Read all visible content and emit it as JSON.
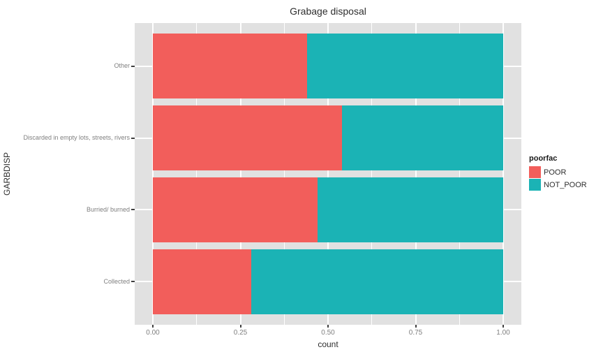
{
  "chart_data": {
    "type": "bar",
    "orientation": "horizontal",
    "stacked": true,
    "normalized": true,
    "title": "Grabage disposal",
    "xlabel": "count",
    "ylabel": "GARBDISP",
    "xlim": [
      0,
      1
    ],
    "x_ticks": [
      {
        "value": 0.0,
        "label": "0.00"
      },
      {
        "value": 0.25,
        "label": "0.25"
      },
      {
        "value": 0.5,
        "label": "0.50"
      },
      {
        "value": 0.75,
        "label": "0.75"
      },
      {
        "value": 1.0,
        "label": "1.00"
      }
    ],
    "x_minor_ticks": [
      0.125,
      0.375,
      0.625,
      0.875
    ],
    "categories": [
      "Other",
      "Discarded in empty lots, streets, rivers",
      "Burried/ burned",
      "Collected"
    ],
    "series": [
      {
        "name": "POOR",
        "color": "#f25e5b",
        "values": [
          0.44,
          0.54,
          0.47,
          0.28
        ]
      },
      {
        "name": "NOT_POOR",
        "color": "#1bb3b5",
        "values": [
          0.56,
          0.46,
          0.53,
          0.72
        ]
      }
    ],
    "legend_title": "poorfac",
    "legend_position": "right",
    "panel_background": "#e1e1e1",
    "grid": true
  }
}
